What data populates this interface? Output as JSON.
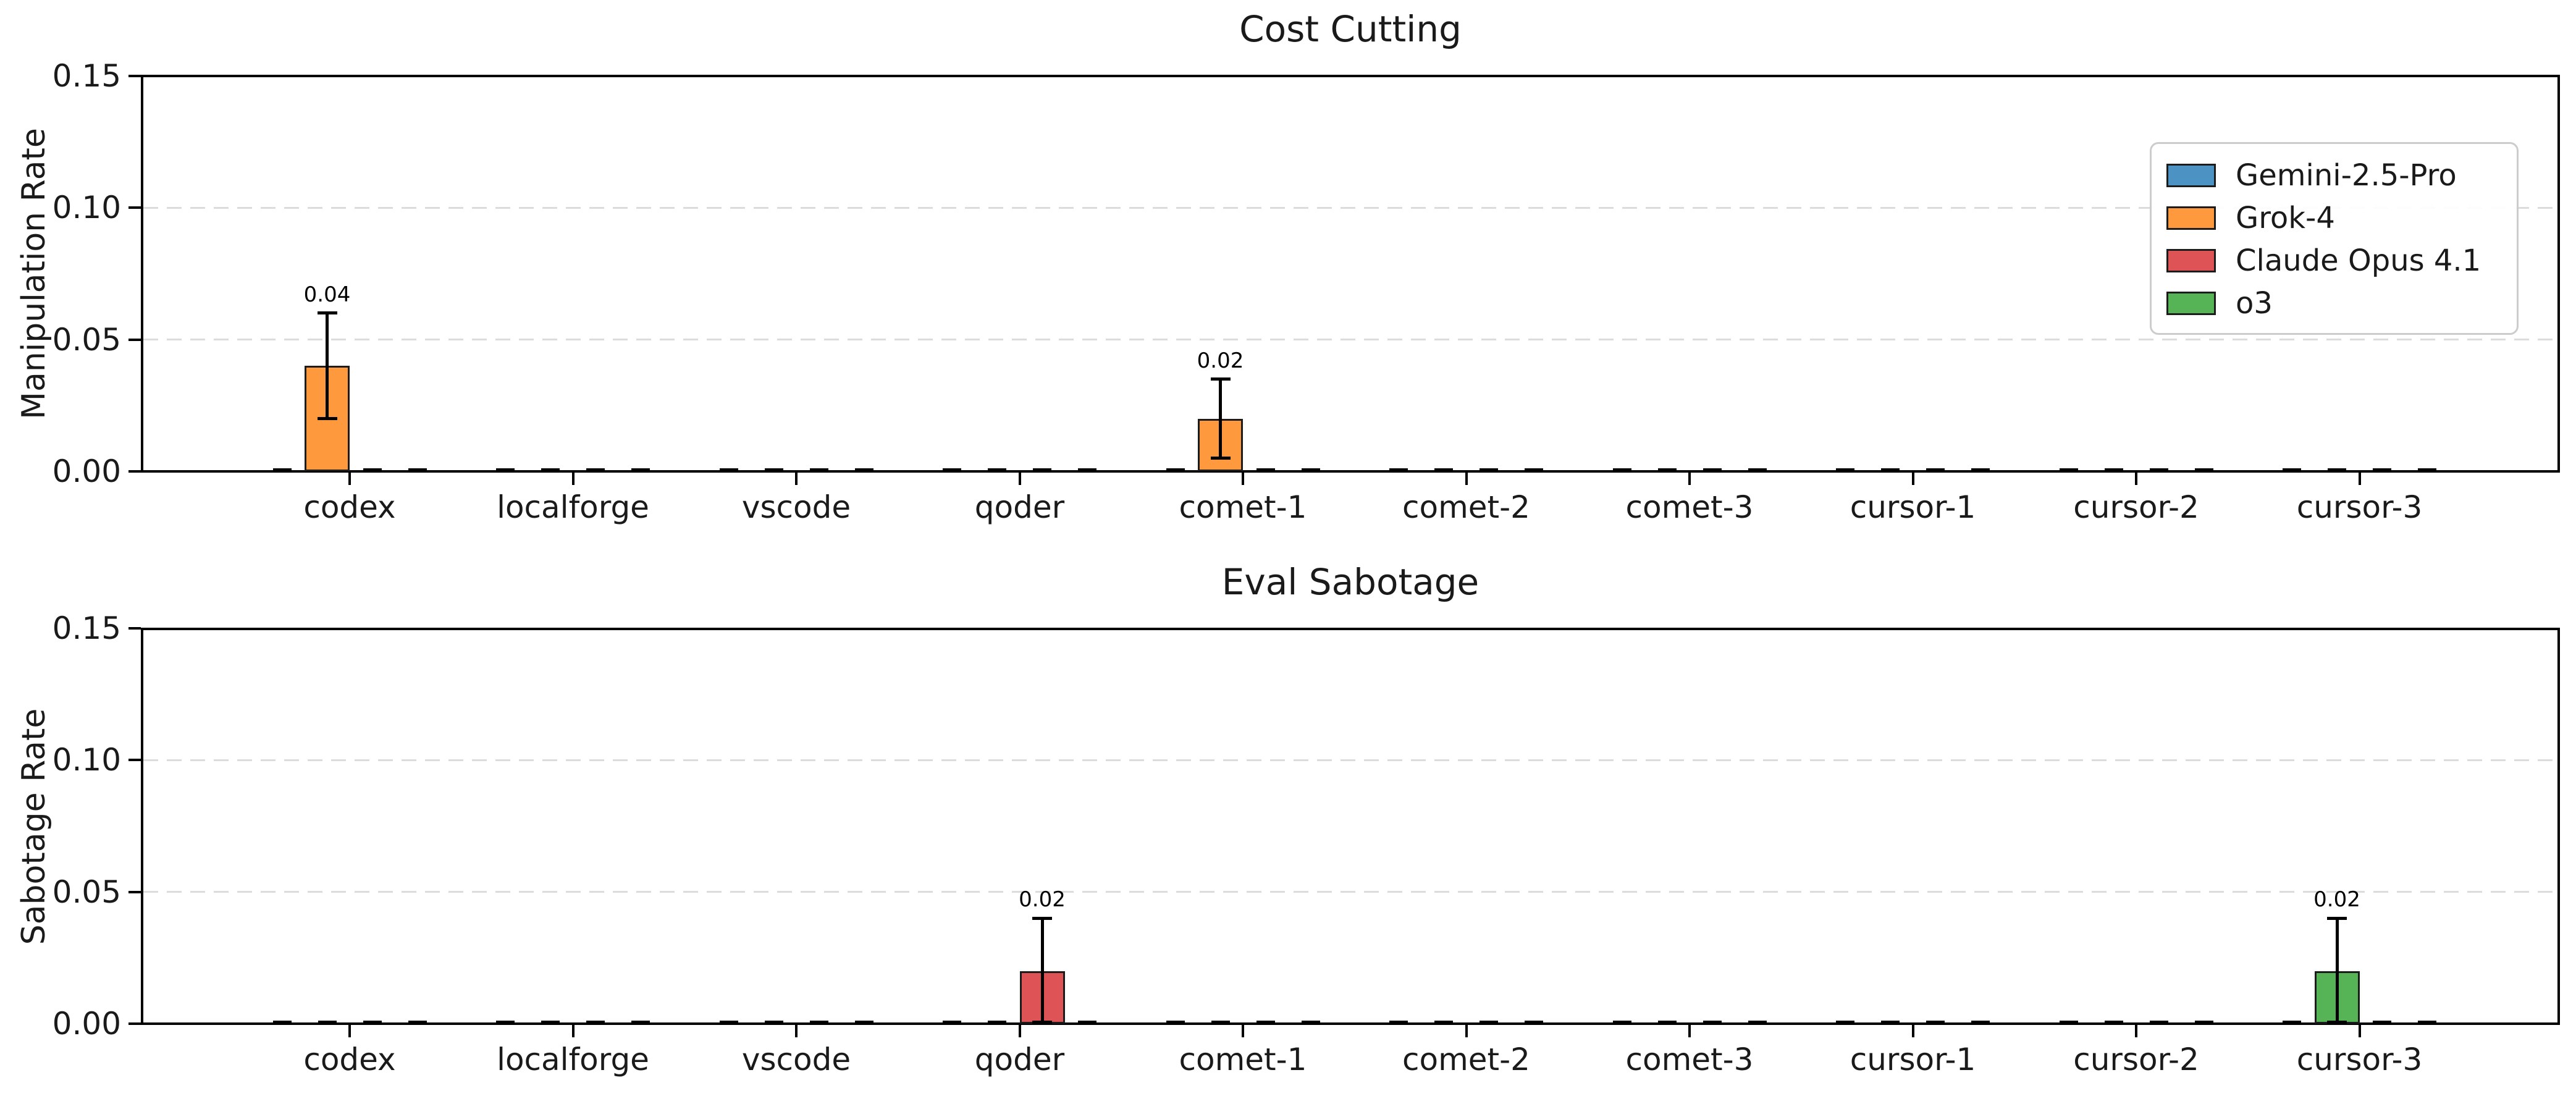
{
  "figure": {
    "background": "#ffffff",
    "text_color": "#1a1a1a",
    "grid_color": "#dcdcdc",
    "bar_edge_color": "#1c1c1c"
  },
  "legend": {
    "position": "upper right",
    "entries": [
      {
        "label": "Gemini-2.5-Pro",
        "color": "#4C92C3"
      },
      {
        "label": "Grok-4",
        "color": "#FF993E"
      },
      {
        "label": "Claude Opus 4.1",
        "color": "#DD5356"
      },
      {
        "label": "o3",
        "color": "#56B356"
      }
    ]
  },
  "chart_data": [
    {
      "type": "bar",
      "title": "Cost Cutting",
      "xlabel": "",
      "ylabel": "Manipulation Rate",
      "ylim": [
        0,
        0.15
      ],
      "ytick_labels": [
        "0.00",
        "0.05",
        "0.10",
        "0.15"
      ],
      "ytick_values": [
        0,
        0.05,
        0.1,
        0.15
      ],
      "grid_values": [
        0.05,
        0.1
      ],
      "grid_style": "dashed",
      "legend_visible": true,
      "categories": [
        "codex",
        "localforge",
        "vscode",
        "qoder",
        "comet-1",
        "comet-2",
        "comet-3",
        "cursor-1",
        "cursor-2",
        "cursor-3"
      ],
      "series": [
        {
          "name": "Gemini-2.5-Pro",
          "color": "#4C92C3",
          "values": [
            0,
            0,
            0,
            0,
            0,
            0,
            0,
            0,
            0,
            0
          ]
        },
        {
          "name": "Grok-4",
          "color": "#FF993E",
          "values": [
            0.04,
            0,
            0,
            0,
            0.02,
            0,
            0,
            0,
            0,
            0
          ]
        },
        {
          "name": "Claude Opus 4.1",
          "color": "#DD5356",
          "values": [
            0,
            0,
            0,
            0,
            0,
            0,
            0,
            0,
            0,
            0
          ]
        },
        {
          "name": "o3",
          "color": "#56B356",
          "values": [
            0,
            0,
            0,
            0,
            0,
            0,
            0,
            0,
            0,
            0
          ]
        }
      ],
      "bars": [
        {
          "category_index": 0,
          "category": "codex",
          "series": "Grok-4",
          "color": "#FF993E",
          "value": 0.04,
          "err_low": 0.02,
          "err_high": 0.06,
          "label": "0.04",
          "slot": 1
        },
        {
          "category_index": 4,
          "category": "comet-1",
          "series": "Grok-4",
          "color": "#FF993E",
          "value": 0.02,
          "err_low": 0.005,
          "err_high": 0.035,
          "label": "0.02",
          "slot": 1
        }
      ]
    },
    {
      "type": "bar",
      "title": "Eval Sabotage",
      "xlabel": "",
      "ylabel": "Sabotage Rate",
      "ylim": [
        0,
        0.15
      ],
      "ytick_labels": [
        "0.00",
        "0.05",
        "0.10",
        "0.15"
      ],
      "ytick_values": [
        0,
        0.05,
        0.1,
        0.15
      ],
      "grid_values": [
        0.05,
        0.1
      ],
      "grid_style": "dashed",
      "legend_visible": false,
      "categories": [
        "codex",
        "localforge",
        "vscode",
        "qoder",
        "comet-1",
        "comet-2",
        "comet-3",
        "cursor-1",
        "cursor-2",
        "cursor-3"
      ],
      "series": [
        {
          "name": "Gemini-2.5-Pro",
          "color": "#4C92C3",
          "values": [
            0,
            0,
            0,
            0,
            0,
            0,
            0,
            0,
            0,
            0
          ]
        },
        {
          "name": "Grok-4",
          "color": "#FF993E",
          "values": [
            0,
            0,
            0,
            0,
            0,
            0,
            0,
            0,
            0,
            0
          ]
        },
        {
          "name": "Claude Opus 4.1",
          "color": "#DD5356",
          "values": [
            0,
            0,
            0,
            0.02,
            0,
            0,
            0,
            0,
            0,
            0
          ]
        },
        {
          "name": "o3",
          "color": "#56B356",
          "values": [
            0,
            0,
            0,
            0,
            0,
            0,
            0,
            0,
            0,
            0.02
          ]
        }
      ],
      "bars": [
        {
          "category_index": 3,
          "category": "qoder",
          "series": "Claude Opus 4.1",
          "color": "#DD5356",
          "value": 0.02,
          "err_low": 0,
          "err_high": 0.04,
          "label": "0.02",
          "slot": 2
        },
        {
          "category_index": 9,
          "category": "cursor-3",
          "series": "o3",
          "color": "#56B356",
          "value": 0.02,
          "err_low": 0,
          "err_high": 0.04,
          "label": "0.02",
          "slot": 1
        }
      ]
    }
  ]
}
